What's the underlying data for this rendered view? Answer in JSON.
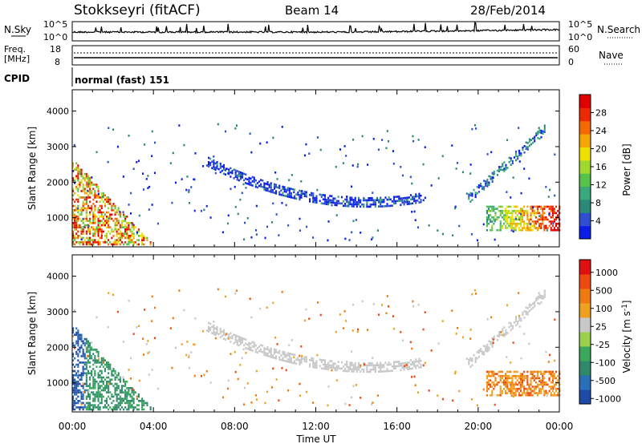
{
  "header": {
    "station": "Stokkseyri (fitACF)",
    "beam": "Beam 14",
    "date": "28/Feb/2014"
  },
  "strips": {
    "nsky": {
      "label": "N.Sky",
      "top_tick": "10^5",
      "bottom_tick": "10^0",
      "right_top_tick": "10^5",
      "right_bottom_tick": "10^0",
      "right_label": "N.Search"
    },
    "freq": {
      "label_line1": "Freq.",
      "label_line2": "[MHz]",
      "left_ticks": [
        "18",
        "8"
      ],
      "right_ticks": [
        "60",
        "0"
      ],
      "right_label": "Nave"
    },
    "cpid": {
      "label": "CPID",
      "value": "normal (fast) 151"
    }
  },
  "chart_data": [
    {
      "type": "heatmap",
      "title": "",
      "xlabel": "Time UT",
      "ylabel": "Slant Range [km]",
      "x_ticks": [
        "00:00",
        "04:00",
        "08:00",
        "12:00",
        "16:00",
        "20:00",
        "00:00"
      ],
      "x_hours": [
        0,
        4,
        8,
        12,
        16,
        20,
        24
      ],
      "xlim": [
        0,
        24
      ],
      "ylim": [
        180,
        4600
      ],
      "y_ticks": [
        1000,
        2000,
        3000,
        4000
      ],
      "colorbar": {
        "label": "Power [dB]",
        "ticks": [
          "4",
          "8",
          "12",
          "16",
          "20",
          "24",
          "28"
        ],
        "colors": [
          "#0a1ee6",
          "#2f4fd0",
          "#2a8a78",
          "#3aa87a",
          "#55c24a",
          "#a0d830",
          "#f0e000",
          "#f7a600",
          "#f46a00",
          "#ea2a00",
          "#e00000"
        ]
      },
      "regions": [
        {
          "name": "early-backscatter",
          "t": [
            0,
            3.8
          ],
          "range": [
            200,
            2600
          ],
          "level": "high"
        },
        {
          "name": "arc-scatter",
          "t": [
            6.6,
            17.2
          ],
          "range": [
            1300,
            2700
          ],
          "level": "low"
        },
        {
          "name": "rising-scatter",
          "t": [
            19.5,
            23.3
          ],
          "range": [
            1500,
            3500
          ],
          "level": "low-mid"
        },
        {
          "name": "late-band",
          "t": [
            20.4,
            24
          ],
          "range": [
            600,
            1300
          ],
          "level": "mid-high"
        }
      ]
    },
    {
      "type": "heatmap",
      "title": "",
      "xlabel": "Time UT",
      "ylabel": "Slant Range [km]",
      "x_ticks": [
        "00:00",
        "04:00",
        "08:00",
        "12:00",
        "16:00",
        "20:00",
        "00:00"
      ],
      "xlim": [
        0,
        24
      ],
      "ylim": [
        180,
        4600
      ],
      "y_ticks": [
        1000,
        2000,
        3000,
        4000
      ],
      "colorbar": {
        "label": "Velocity [m s^-1]",
        "ticks": [
          "1000",
          "500",
          "100",
          "25",
          "-25",
          "-100",
          "-500",
          "-1000"
        ],
        "colors": [
          "#1f4aa8",
          "#2a6fb8",
          "#2e8a6a",
          "#3aa85a",
          "#9ad04a",
          "#c8c8c8",
          "#f0a020",
          "#f07a10",
          "#ee4a10",
          "#e01010"
        ]
      }
    }
  ]
}
